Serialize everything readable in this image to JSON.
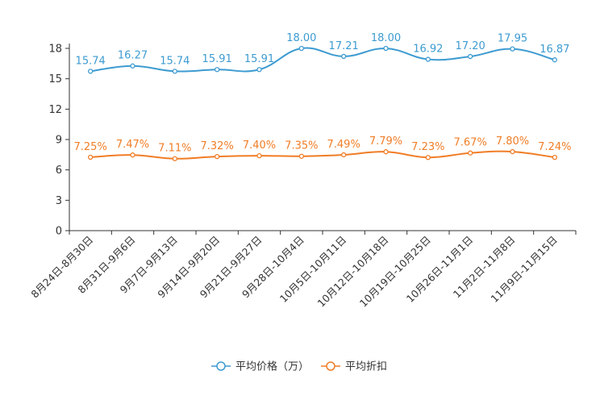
{
  "chart_data": {
    "type": "line",
    "title": "",
    "xlabel": "",
    "ylabel": "",
    "ylim": [
      0,
      18
    ],
    "yticks": [
      0,
      3,
      6,
      9,
      12,
      15,
      18
    ],
    "categories": [
      "8月24日-8月30日",
      "8月31日-9月6日",
      "9月7日-9月13日",
      "9月14日-9月20日",
      "9月21日-9月27日",
      "9月28日-10月4日",
      "10月5日-10月11日",
      "10月12日-10月18日",
      "10月19日-10月25日",
      "10月26日-11月1日",
      "11月2日-11月8日",
      "11月9日-11月15日"
    ],
    "series": [
      {
        "name": "平均价格（万）",
        "color": "#3d9bd1",
        "values": [
          15.74,
          16.27,
          15.74,
          15.91,
          15.91,
          18.0,
          17.21,
          18.0,
          16.92,
          17.2,
          17.95,
          16.87
        ],
        "labels": [
          "15.74",
          "16.27",
          "15.74",
          "15.91",
          "15.91",
          "18.00",
          "17.21",
          "18.00",
          "16.92",
          "17.20",
          "17.95",
          "16.87"
        ]
      },
      {
        "name": "平均折扣",
        "color": "#f07d26",
        "values": [
          7.25,
          7.47,
          7.11,
          7.32,
          7.4,
          7.35,
          7.49,
          7.79,
          7.23,
          7.67,
          7.8,
          7.24
        ],
        "labels": [
          "7.25%",
          "7.47%",
          "7.11%",
          "7.32%",
          "7.40%",
          "7.35%",
          "7.49%",
          "7.79%",
          "7.23%",
          "7.67%",
          "7.80%",
          "7.24%"
        ]
      }
    ],
    "legend": {
      "position": "bottom-center",
      "entries": [
        "平均价格（万）",
        "平均折扣"
      ]
    }
  }
}
